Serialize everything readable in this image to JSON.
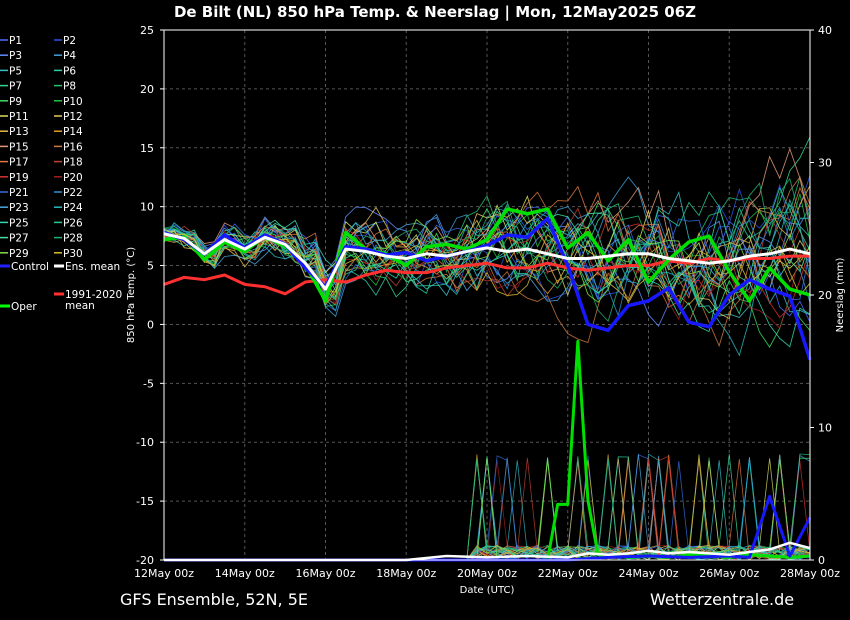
{
  "chart_data": {
    "type": "line",
    "title": "De Bilt  (NL)  850 hPa Temp. & Neerslag | Mon, 12May2025 06Z",
    "xlabel": "Date (UTC)",
    "ylabel": "850 hPa Temp. (°C)",
    "ylabel_right": "Neerslag (mm)",
    "footer_left": "GFS Ensemble, 52N, 5E",
    "footer_right": "Wetterzentrale.de",
    "ylim": [
      -20,
      25
    ],
    "ylim_right": [
      0,
      40
    ],
    "yticks": [
      -20,
      -15,
      -10,
      -5,
      0,
      5,
      10,
      15,
      20,
      25
    ],
    "yticks_right": [
      0,
      10,
      20,
      30,
      40
    ],
    "xlim": [
      "12May 00z",
      "28May 00z"
    ],
    "xticks": [
      "12May 00z",
      "14May 00z",
      "16May 00z",
      "18May 00z",
      "20May 00z",
      "22May 00z",
      "24May 00z",
      "26May 00z",
      "28May 00z"
    ],
    "grid": true,
    "legend_position": "left",
    "legend": [
      {
        "label": "P1",
        "color": "#4a6cff"
      },
      {
        "label": "P2",
        "color": "#2e55e0"
      },
      {
        "label": "P3",
        "color": "#5f8cff"
      },
      {
        "label": "P4",
        "color": "#3fa0d8"
      },
      {
        "label": "P5",
        "color": "#38c0c8"
      },
      {
        "label": "P6",
        "color": "#2fd0a8"
      },
      {
        "label": "P7",
        "color": "#30d890"
      },
      {
        "label": "P8",
        "color": "#26c070"
      },
      {
        "label": "P9",
        "color": "#35e060"
      },
      {
        "label": "P10",
        "color": "#20c040"
      },
      {
        "label": "P11",
        "color": "#d8e060"
      },
      {
        "label": "P12",
        "color": "#e8c860"
      },
      {
        "label": "P13",
        "color": "#e8b840"
      },
      {
        "label": "P14",
        "color": "#e0a030"
      },
      {
        "label": "P15",
        "color": "#e09878"
      },
      {
        "label": "P16",
        "color": "#c87840"
      },
      {
        "label": "P17",
        "color": "#e07840"
      },
      {
        "label": "P18",
        "color": "#c04030"
      },
      {
        "label": "P19",
        "color": "#d83030"
      },
      {
        "label": "P20",
        "color": "#a02020"
      },
      {
        "label": "P21",
        "color": "#3070e0"
      },
      {
        "label": "P22",
        "color": "#2890d8"
      },
      {
        "label": "P23",
        "color": "#4aa8e0"
      },
      {
        "label": "P24",
        "color": "#2cb8c0"
      },
      {
        "label": "P25",
        "color": "#30d8b0"
      },
      {
        "label": "P26",
        "color": "#28c898"
      },
      {
        "label": "P27",
        "color": "#40e0a0"
      },
      {
        "label": "P28",
        "color": "#20b070"
      },
      {
        "label": "P29",
        "color": "#80e040"
      },
      {
        "label": "P30",
        "color": "#d8c030"
      },
      {
        "label": "Control",
        "color": "#2020ff"
      },
      {
        "label": "Ens. mean",
        "color": "#ffffff"
      },
      {
        "label": "1991-2020 mean",
        "color": "#ff3030"
      },
      {
        "label": "Oper",
        "color": "#00ff00"
      }
    ],
    "series": [
      {
        "name": "Control",
        "color": "#1818ff",
        "width": 3.5,
        "axis": "temp",
        "x": [
          0,
          0.5,
          1,
          1.5,
          2,
          2.5,
          3,
          3.5,
          4,
          4.5,
          5,
          5.5,
          6,
          6.5,
          7,
          7.5,
          8,
          8.5,
          9,
          9.5,
          10,
          10.5,
          11,
          11.5,
          12,
          12.5,
          13,
          13.5,
          14,
          14.5,
          15,
          15.5,
          16
        ],
        "y": [
          7.8,
          7.2,
          6.0,
          7.6,
          6.5,
          7.6,
          6.8,
          4.8,
          3.2,
          6.6,
          6.4,
          5.9,
          6.1,
          5.4,
          5.8,
          6.2,
          6.7,
          7.6,
          7.4,
          9.0,
          5.0,
          0.0,
          -0.5,
          1.6,
          2.0,
          3.1,
          0.2,
          -0.2,
          2.5,
          3.8,
          3.0,
          2.4,
          -3.0
        ]
      },
      {
        "name": "Oper",
        "color": "#00e000",
        "width": 3.5,
        "axis": "temp",
        "x": [
          0,
          0.5,
          1,
          1.5,
          2,
          2.5,
          3,
          3.5,
          4,
          4.5,
          5,
          5.5,
          6,
          6.5,
          7,
          7.5,
          8,
          8.5,
          9,
          9.5,
          10,
          10.5,
          11,
          11.5,
          12,
          12.5,
          13,
          13.5,
          14,
          14.5,
          15,
          15.5,
          16
        ],
        "y": [
          7.2,
          7.4,
          5.5,
          7.0,
          6.2,
          7.5,
          6.6,
          5.1,
          2.0,
          7.8,
          6.4,
          6.0,
          5.0,
          6.6,
          6.8,
          6.4,
          7.2,
          9.8,
          9.4,
          9.8,
          6.5,
          7.8,
          5.4,
          7.2,
          3.6,
          5.5,
          7.0,
          7.5,
          4.5,
          2.0,
          4.8,
          3.0,
          2.5
        ]
      },
      {
        "name": "Ens. mean",
        "color": "#ffffff",
        "width": 3,
        "axis": "temp",
        "x": [
          0,
          0.5,
          1,
          1.5,
          2,
          2.5,
          3,
          3.5,
          4,
          4.5,
          5,
          5.5,
          6,
          6.5,
          7,
          7.5,
          8,
          8.5,
          9,
          9.5,
          10,
          10.5,
          11,
          11.5,
          12,
          12.5,
          13,
          13.5,
          14,
          14.5,
          15,
          15.5,
          16
        ],
        "y": [
          7.7,
          7.3,
          6.0,
          7.2,
          6.4,
          7.4,
          6.8,
          5.2,
          3.0,
          6.4,
          6.2,
          5.8,
          5.6,
          6.0,
          5.8,
          6.2,
          6.5,
          6.2,
          6.4,
          6.0,
          5.6,
          5.6,
          5.8,
          6.0,
          6.0,
          5.6,
          5.4,
          5.2,
          5.4,
          5.8,
          6.0,
          6.4,
          6.0
        ]
      },
      {
        "name": "1991-2020 mean",
        "color": "#ff3030",
        "width": 3,
        "axis": "temp",
        "x": [
          0,
          0.5,
          1,
          1.5,
          2,
          2.5,
          3,
          3.5,
          4,
          4.5,
          5,
          5.5,
          6,
          6.5,
          7,
          7.5,
          8,
          8.5,
          9,
          9.5,
          10,
          10.5,
          11,
          11.5,
          12,
          12.5,
          13,
          13.5,
          14,
          14.5,
          15,
          15.5,
          16
        ],
        "y": [
          3.4,
          4.0,
          3.8,
          4.2,
          3.4,
          3.2,
          2.6,
          3.6,
          3.8,
          3.6,
          4.2,
          4.6,
          4.4,
          4.4,
          4.8,
          5.0,
          5.2,
          4.8,
          4.8,
          5.2,
          4.8,
          4.6,
          4.8,
          5.0,
          5.0,
          5.4,
          5.2,
          5.6,
          5.4,
          5.6,
          5.6,
          5.8,
          5.8
        ]
      },
      {
        "name": "Oper",
        "color": "#00e000",
        "width": 3,
        "axis": "precip",
        "x": [
          0,
          2,
          4,
          6,
          8,
          9.5,
          9.75,
          10,
          10.25,
          10.5,
          10.75,
          11,
          11.5,
          12,
          12.5,
          13,
          13.5,
          14,
          14.5,
          15,
          15.5,
          16
        ],
        "y": [
          0,
          0,
          0,
          0,
          0,
          0,
          4.2,
          4.2,
          16.5,
          4.5,
          0.4,
          0.3,
          0.2,
          0.3,
          0.2,
          0.4,
          0.3,
          0.2,
          0.4,
          0.3,
          0.2,
          0.3
        ]
      },
      {
        "name": "Control",
        "color": "#1818ff",
        "width": 3,
        "axis": "precip",
        "x": [
          0,
          2,
          4,
          6,
          8,
          10,
          11,
          12,
          13,
          14,
          14.5,
          15,
          15.5,
          16
        ],
        "y": [
          0,
          0,
          0,
          0,
          0,
          0,
          0.2,
          0.3,
          0.2,
          0.3,
          0.2,
          4.8,
          0.3,
          3.2
        ]
      },
      {
        "name": "Ens. mean",
        "color": "#ffffff",
        "width": 2.5,
        "axis": "precip",
        "x": [
          0,
          2,
          4,
          6,
          7,
          8,
          9,
          10,
          10.5,
          11,
          11.5,
          12,
          12.5,
          13,
          13.5,
          14,
          14.5,
          15,
          15.5,
          16
        ],
        "y": [
          0,
          0,
          0,
          0,
          0.3,
          0.2,
          0.3,
          0.2,
          0.5,
          0.4,
          0.5,
          0.7,
          0.5,
          0.6,
          0.5,
          0.4,
          0.6,
          0.8,
          1.3,
          0.9
        ]
      }
    ]
  }
}
